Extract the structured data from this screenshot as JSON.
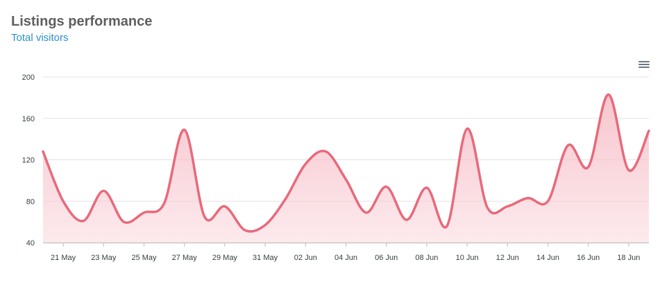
{
  "header": {
    "title": "Listings performance",
    "subtitle": "Total visitors"
  },
  "toolbar": {
    "menu_icon": "hamburger-menu-icon"
  },
  "colors": {
    "line": "#e8697a",
    "area": "#f7c3cc",
    "grid": "#e3e3e3",
    "subtitle": "#2b8fd0"
  },
  "chart_data": {
    "type": "area",
    "title": "Listings performance",
    "subtitle": "Total visitors",
    "xlabel": "",
    "ylabel": "",
    "ylim": [
      40,
      200
    ],
    "yticks": [
      40,
      80,
      120,
      160,
      200
    ],
    "x_tick_labels": [
      "21 May",
      "23 May",
      "25 May",
      "27 May",
      "29 May",
      "31 May",
      "02 Jun",
      "04 Jun",
      "06 Jun",
      "08 Jun",
      "10 Jun",
      "12 Jun",
      "14 Jun",
      "16 Jun",
      "18 Jun"
    ],
    "grid": true,
    "series": [
      {
        "values": [
          128,
          80,
          61,
          90,
          60,
          69,
          78,
          149,
          65,
          75,
          52,
          57,
          82,
          116,
          128,
          101,
          69,
          94,
          62,
          93,
          56,
          150,
          74,
          75,
          83,
          80,
          134,
          113,
          183,
          110,
          148
        ]
      }
    ]
  }
}
